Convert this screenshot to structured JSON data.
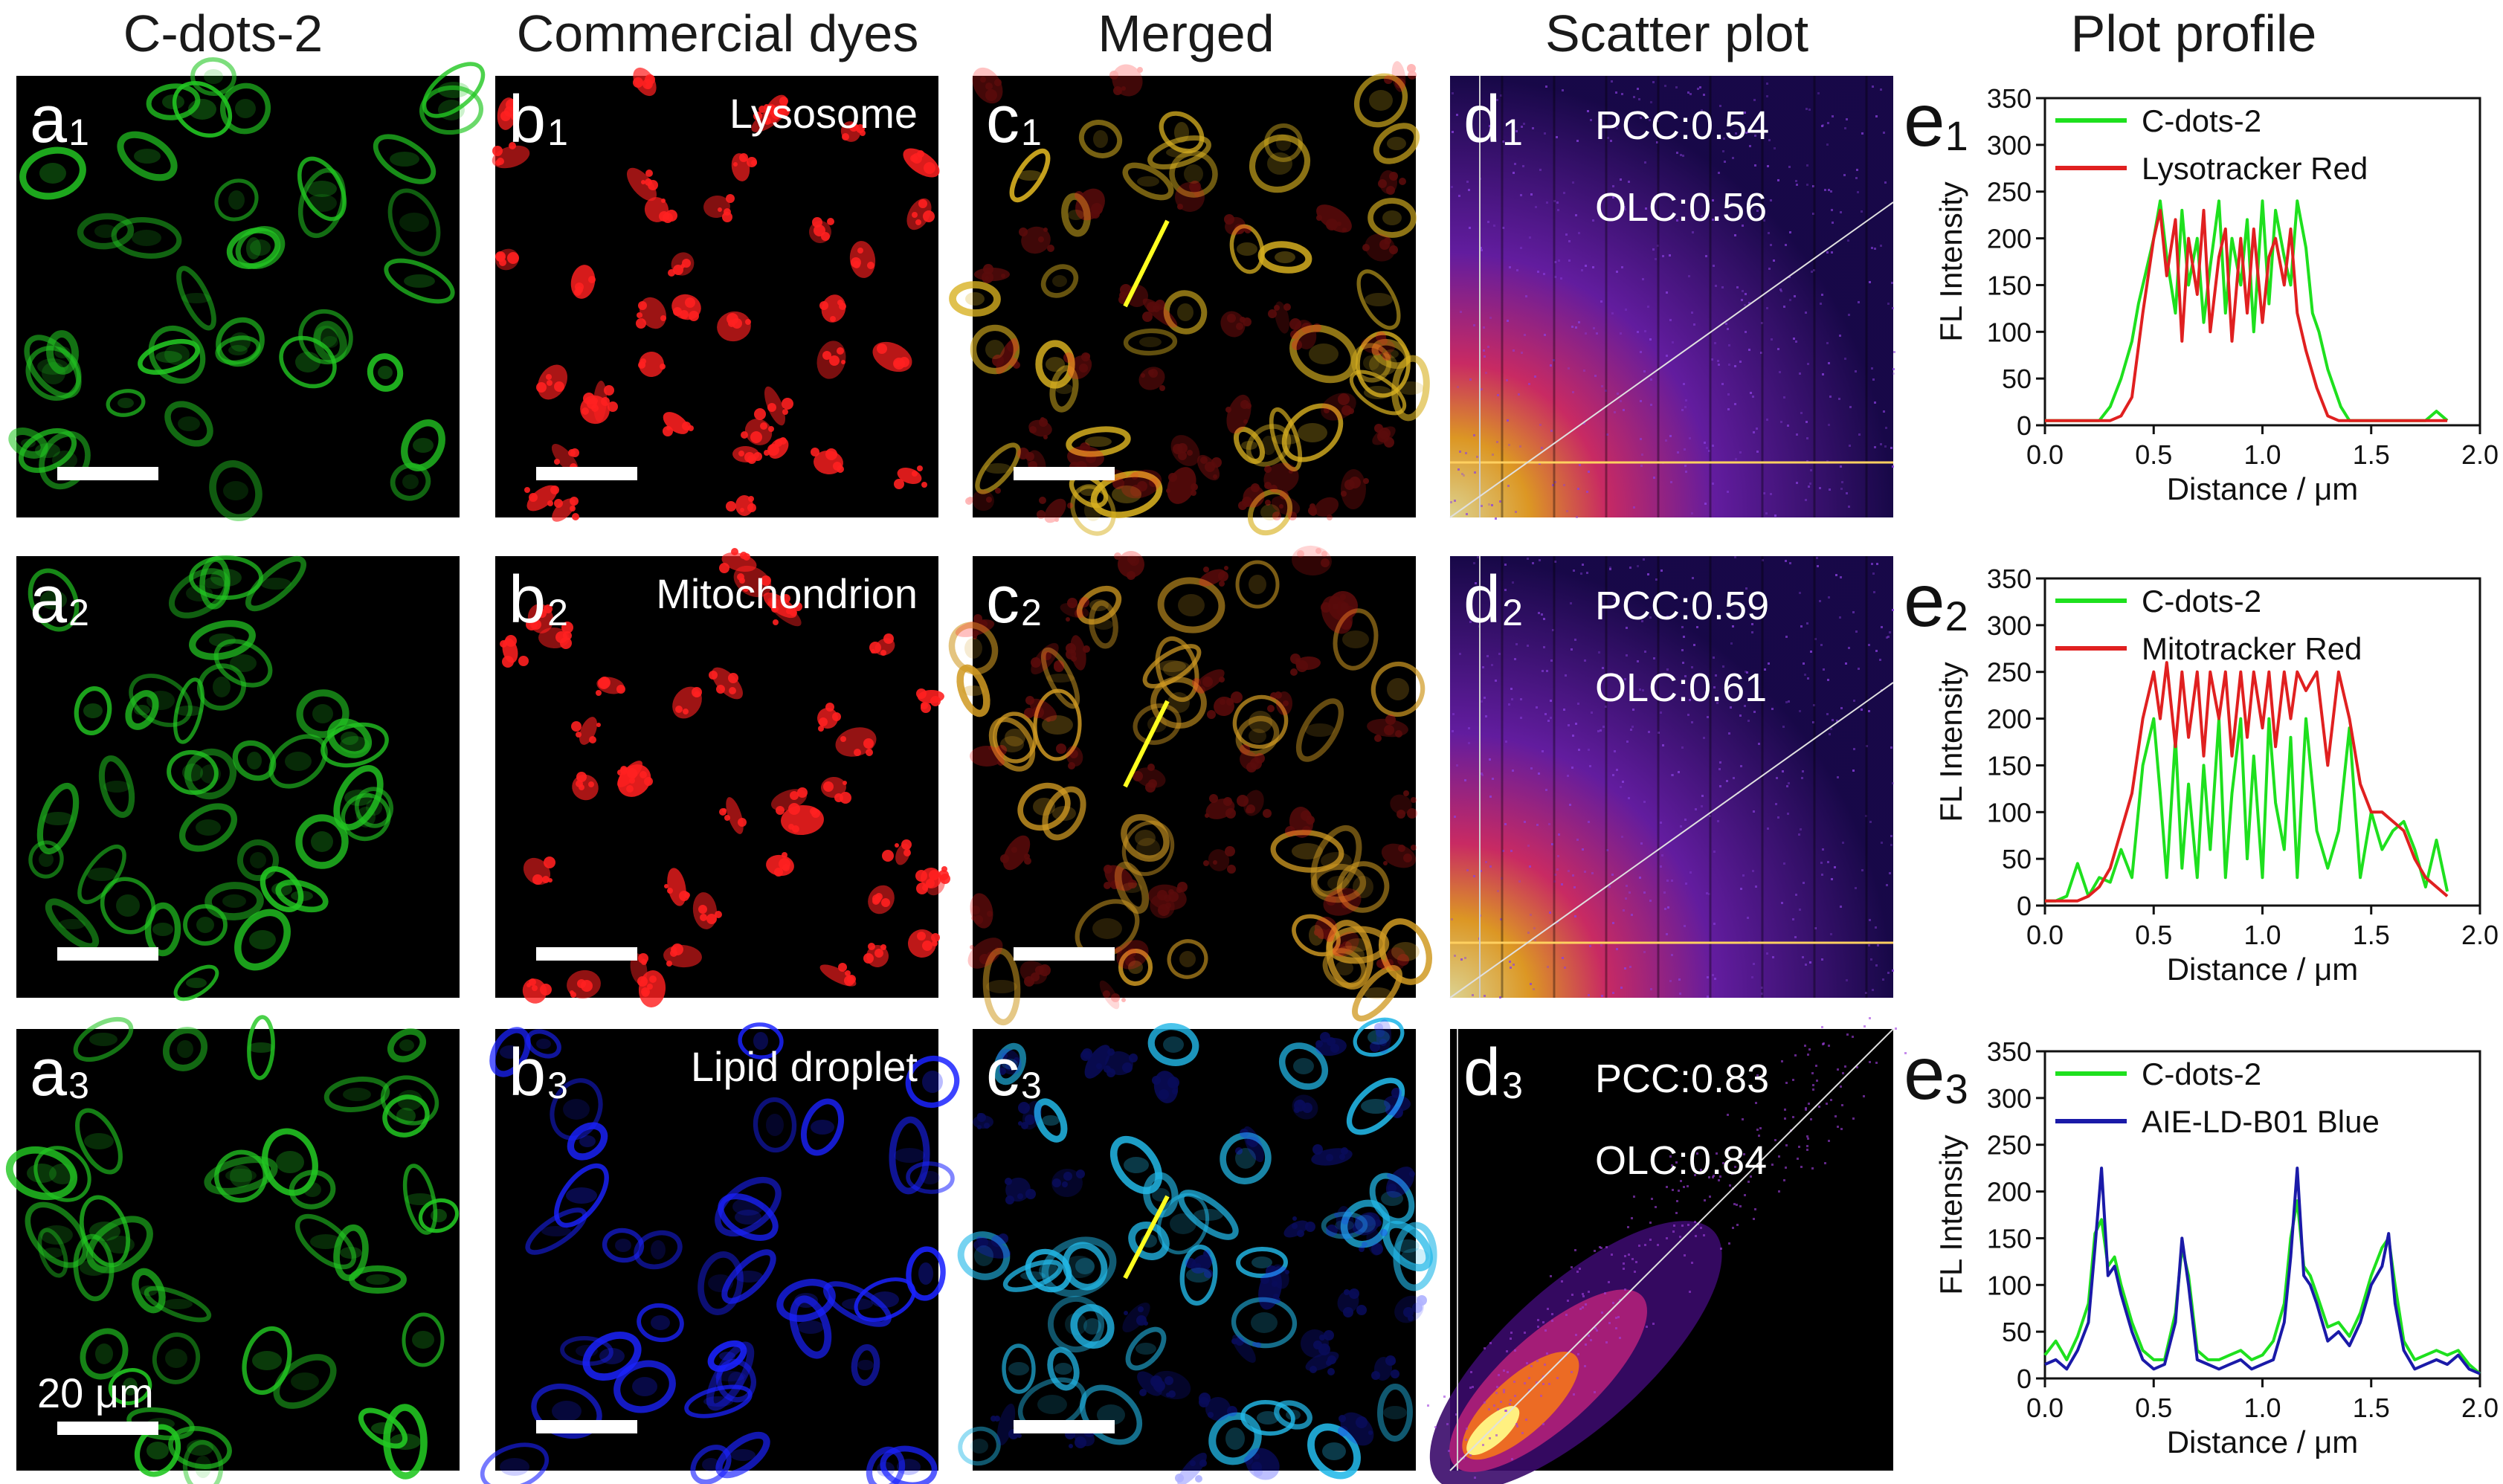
{
  "columns": [
    "C-dots-2",
    "Commercial dyes",
    "Merged",
    "Scatter plot",
    "Plot profile"
  ],
  "rows": [
    {
      "a_label": "a",
      "b_label": "b",
      "c_label": "c",
      "d_label": "d",
      "e_label": "e",
      "index": "1",
      "organelle": "Lysosome",
      "pcc": "PCC:0.54",
      "olc": "OLC:0.56",
      "dye_color": "#ff2020",
      "merge_color": "#d8b020",
      "green": "#22c722"
    },
    {
      "a_label": "a",
      "b_label": "b",
      "c_label": "c",
      "d_label": "d",
      "e_label": "e",
      "index": "2",
      "organelle": "Mitochondrion",
      "pcc": "PCC:0.59",
      "olc": "OLC:0.61",
      "dye_color": "#ff2020",
      "merge_color": "#d09a22",
      "green": "#22c722"
    },
    {
      "a_label": "a",
      "b_label": "b",
      "c_label": "c",
      "d_label": "d",
      "e_label": "e",
      "index": "3",
      "organelle": "Lipid droplet",
      "pcc": "PCC:0.83",
      "olc": "OLC:0.84",
      "dye_color": "#1a22ff",
      "merge_color": "#22b8e8",
      "green": "#22c722"
    }
  ],
  "scale_label": "20 μm",
  "chart_data": [
    {
      "type": "line",
      "xlabel": "Distance / μm",
      "ylabel": "FL Intensity",
      "xlim": [
        0,
        2.0
      ],
      "ylim": [
        0,
        350
      ],
      "xticks": [
        "0.0",
        "0.5",
        "1.0",
        "1.5",
        "2.0"
      ],
      "yticks": [
        "0",
        "50",
        "100",
        "150",
        "200",
        "250",
        "300",
        "350"
      ],
      "series": [
        {
          "name": "C-dots-2",
          "color": "#1ee01e",
          "x": [
            0.0,
            0.05,
            0.1,
            0.15,
            0.2,
            0.25,
            0.3,
            0.35,
            0.4,
            0.43,
            0.46,
            0.5,
            0.53,
            0.56,
            0.6,
            0.63,
            0.66,
            0.7,
            0.73,
            0.76,
            0.8,
            0.83,
            0.86,
            0.9,
            0.93,
            0.96,
            1.0,
            1.03,
            1.06,
            1.1,
            1.13,
            1.16,
            1.2,
            1.23,
            1.26,
            1.3,
            1.33,
            1.36,
            1.4,
            1.45,
            1.5,
            1.55,
            1.6,
            1.65,
            1.7,
            1.75,
            1.8,
            1.85
          ],
          "y": [
            5,
            5,
            5,
            5,
            5,
            5,
            20,
            50,
            90,
            130,
            160,
            200,
            240,
            180,
            120,
            230,
            150,
            200,
            110,
            170,
            240,
            120,
            200,
            150,
            220,
            100,
            240,
            130,
            230,
            180,
            150,
            240,
            190,
            120,
            100,
            60,
            40,
            20,
            5,
            5,
            5,
            5,
            5,
            5,
            5,
            5,
            15,
            5
          ]
        },
        {
          "name": "Lysotracker Red",
          "color": "#e02020",
          "x": [
            0.0,
            0.05,
            0.1,
            0.15,
            0.2,
            0.25,
            0.3,
            0.35,
            0.4,
            0.45,
            0.5,
            0.53,
            0.56,
            0.6,
            0.63,
            0.66,
            0.7,
            0.73,
            0.76,
            0.8,
            0.83,
            0.86,
            0.9,
            0.93,
            0.96,
            1.0,
            1.03,
            1.06,
            1.1,
            1.13,
            1.16,
            1.2,
            1.25,
            1.3,
            1.35,
            1.4,
            1.45,
            1.5,
            1.6,
            1.7,
            1.8,
            1.85
          ],
          "y": [
            5,
            5,
            5,
            5,
            5,
            5,
            5,
            10,
            30,
            120,
            200,
            230,
            160,
            220,
            90,
            200,
            140,
            230,
            100,
            180,
            210,
            90,
            200,
            120,
            210,
            110,
            180,
            200,
            150,
            210,
            120,
            80,
            40,
            10,
            5,
            5,
            5,
            5,
            5,
            5,
            5,
            5
          ]
        }
      ]
    },
    {
      "type": "line",
      "xlabel": "Distance / μm",
      "ylabel": "FL Intensity",
      "xlim": [
        0,
        2.0
      ],
      "ylim": [
        0,
        350
      ],
      "xticks": [
        "0.0",
        "0.5",
        "1.0",
        "1.5",
        "2.0"
      ],
      "yticks": [
        "0",
        "50",
        "100",
        "150",
        "200",
        "250",
        "300",
        "350"
      ],
      "series": [
        {
          "name": "C-dots-2",
          "color": "#1ee01e",
          "x": [
            0.0,
            0.05,
            0.1,
            0.15,
            0.2,
            0.25,
            0.3,
            0.35,
            0.4,
            0.45,
            0.5,
            0.53,
            0.56,
            0.6,
            0.63,
            0.66,
            0.7,
            0.73,
            0.76,
            0.8,
            0.83,
            0.86,
            0.9,
            0.93,
            0.96,
            1.0,
            1.03,
            1.06,
            1.1,
            1.13,
            1.16,
            1.2,
            1.25,
            1.3,
            1.35,
            1.4,
            1.45,
            1.5,
            1.55,
            1.6,
            1.65,
            1.7,
            1.75,
            1.8,
            1.85
          ],
          "y": [
            5,
            5,
            10,
            45,
            10,
            30,
            25,
            60,
            30,
            150,
            200,
            120,
            30,
            180,
            40,
            130,
            30,
            150,
            60,
            200,
            30,
            120,
            200,
            50,
            160,
            30,
            200,
            110,
            60,
            180,
            30,
            200,
            80,
            40,
            80,
            190,
            30,
            100,
            60,
            80,
            90,
            60,
            20,
            70,
            15
          ]
        },
        {
          "name": "Mitotracker Red",
          "color": "#e02020",
          "x": [
            0.0,
            0.05,
            0.1,
            0.15,
            0.2,
            0.25,
            0.3,
            0.35,
            0.4,
            0.45,
            0.5,
            0.53,
            0.56,
            0.6,
            0.63,
            0.66,
            0.7,
            0.73,
            0.76,
            0.8,
            0.83,
            0.86,
            0.9,
            0.93,
            0.96,
            1.0,
            1.03,
            1.06,
            1.1,
            1.13,
            1.16,
            1.2,
            1.25,
            1.3,
            1.35,
            1.4,
            1.45,
            1.5,
            1.55,
            1.6,
            1.65,
            1.7,
            1.75,
            1.8,
            1.85
          ],
          "y": [
            5,
            5,
            5,
            5,
            10,
            20,
            40,
            80,
            120,
            200,
            250,
            200,
            260,
            170,
            250,
            180,
            250,
            160,
            250,
            200,
            250,
            160,
            250,
            180,
            250,
            190,
            250,
            170,
            250,
            200,
            250,
            230,
            250,
            150,
            250,
            200,
            130,
            100,
            100,
            90,
            80,
            50,
            30,
            20,
            10
          ]
        }
      ]
    },
    {
      "type": "line",
      "xlabel": "Distance / μm",
      "ylabel": "FL Intensity",
      "xlim": [
        0,
        2.0
      ],
      "ylim": [
        0,
        350
      ],
      "xticks": [
        "0.0",
        "0.5",
        "1.0",
        "1.5",
        "2.0"
      ],
      "yticks": [
        "0",
        "50",
        "100",
        "150",
        "200",
        "250",
        "300",
        "350"
      ],
      "series": [
        {
          "name": "C-dots-2",
          "color": "#1ee01e",
          "x": [
            0.0,
            0.05,
            0.1,
            0.15,
            0.2,
            0.23,
            0.26,
            0.29,
            0.32,
            0.35,
            0.4,
            0.45,
            0.5,
            0.55,
            0.6,
            0.63,
            0.66,
            0.7,
            0.75,
            0.8,
            0.85,
            0.9,
            0.95,
            1.0,
            1.05,
            1.1,
            1.13,
            1.16,
            1.19,
            1.22,
            1.25,
            1.3,
            1.35,
            1.4,
            1.45,
            1.5,
            1.55,
            1.58,
            1.61,
            1.65,
            1.7,
            1.75,
            1.8,
            1.85,
            1.9,
            1.95,
            2.0
          ],
          "y": [
            25,
            40,
            20,
            45,
            80,
            155,
            170,
            120,
            130,
            100,
            60,
            30,
            20,
            20,
            70,
            140,
            110,
            30,
            20,
            20,
            25,
            30,
            20,
            25,
            40,
            80,
            150,
            190,
            120,
            110,
            90,
            55,
            60,
            45,
            70,
            110,
            140,
            150,
            100,
            40,
            20,
            25,
            30,
            25,
            30,
            15,
            5
          ]
        },
        {
          "name": "AIE-LD-B01 Blue",
          "color": "#1a1aa8",
          "x": [
            0.0,
            0.05,
            0.1,
            0.15,
            0.2,
            0.23,
            0.26,
            0.29,
            0.32,
            0.35,
            0.4,
            0.45,
            0.5,
            0.55,
            0.6,
            0.63,
            0.66,
            0.7,
            0.75,
            0.8,
            0.85,
            0.9,
            0.95,
            1.0,
            1.05,
            1.1,
            1.13,
            1.16,
            1.19,
            1.22,
            1.25,
            1.3,
            1.35,
            1.4,
            1.45,
            1.5,
            1.55,
            1.58,
            1.61,
            1.65,
            1.7,
            1.75,
            1.8,
            1.85,
            1.9,
            1.95,
            2.0
          ],
          "y": [
            15,
            20,
            10,
            30,
            60,
            140,
            225,
            110,
            120,
            90,
            50,
            20,
            10,
            15,
            60,
            150,
            100,
            20,
            15,
            10,
            15,
            20,
            10,
            15,
            20,
            60,
            130,
            225,
            110,
            100,
            80,
            40,
            50,
            35,
            60,
            100,
            120,
            155,
            80,
            30,
            10,
            15,
            20,
            15,
            25,
            10,
            5
          ]
        }
      ]
    }
  ]
}
